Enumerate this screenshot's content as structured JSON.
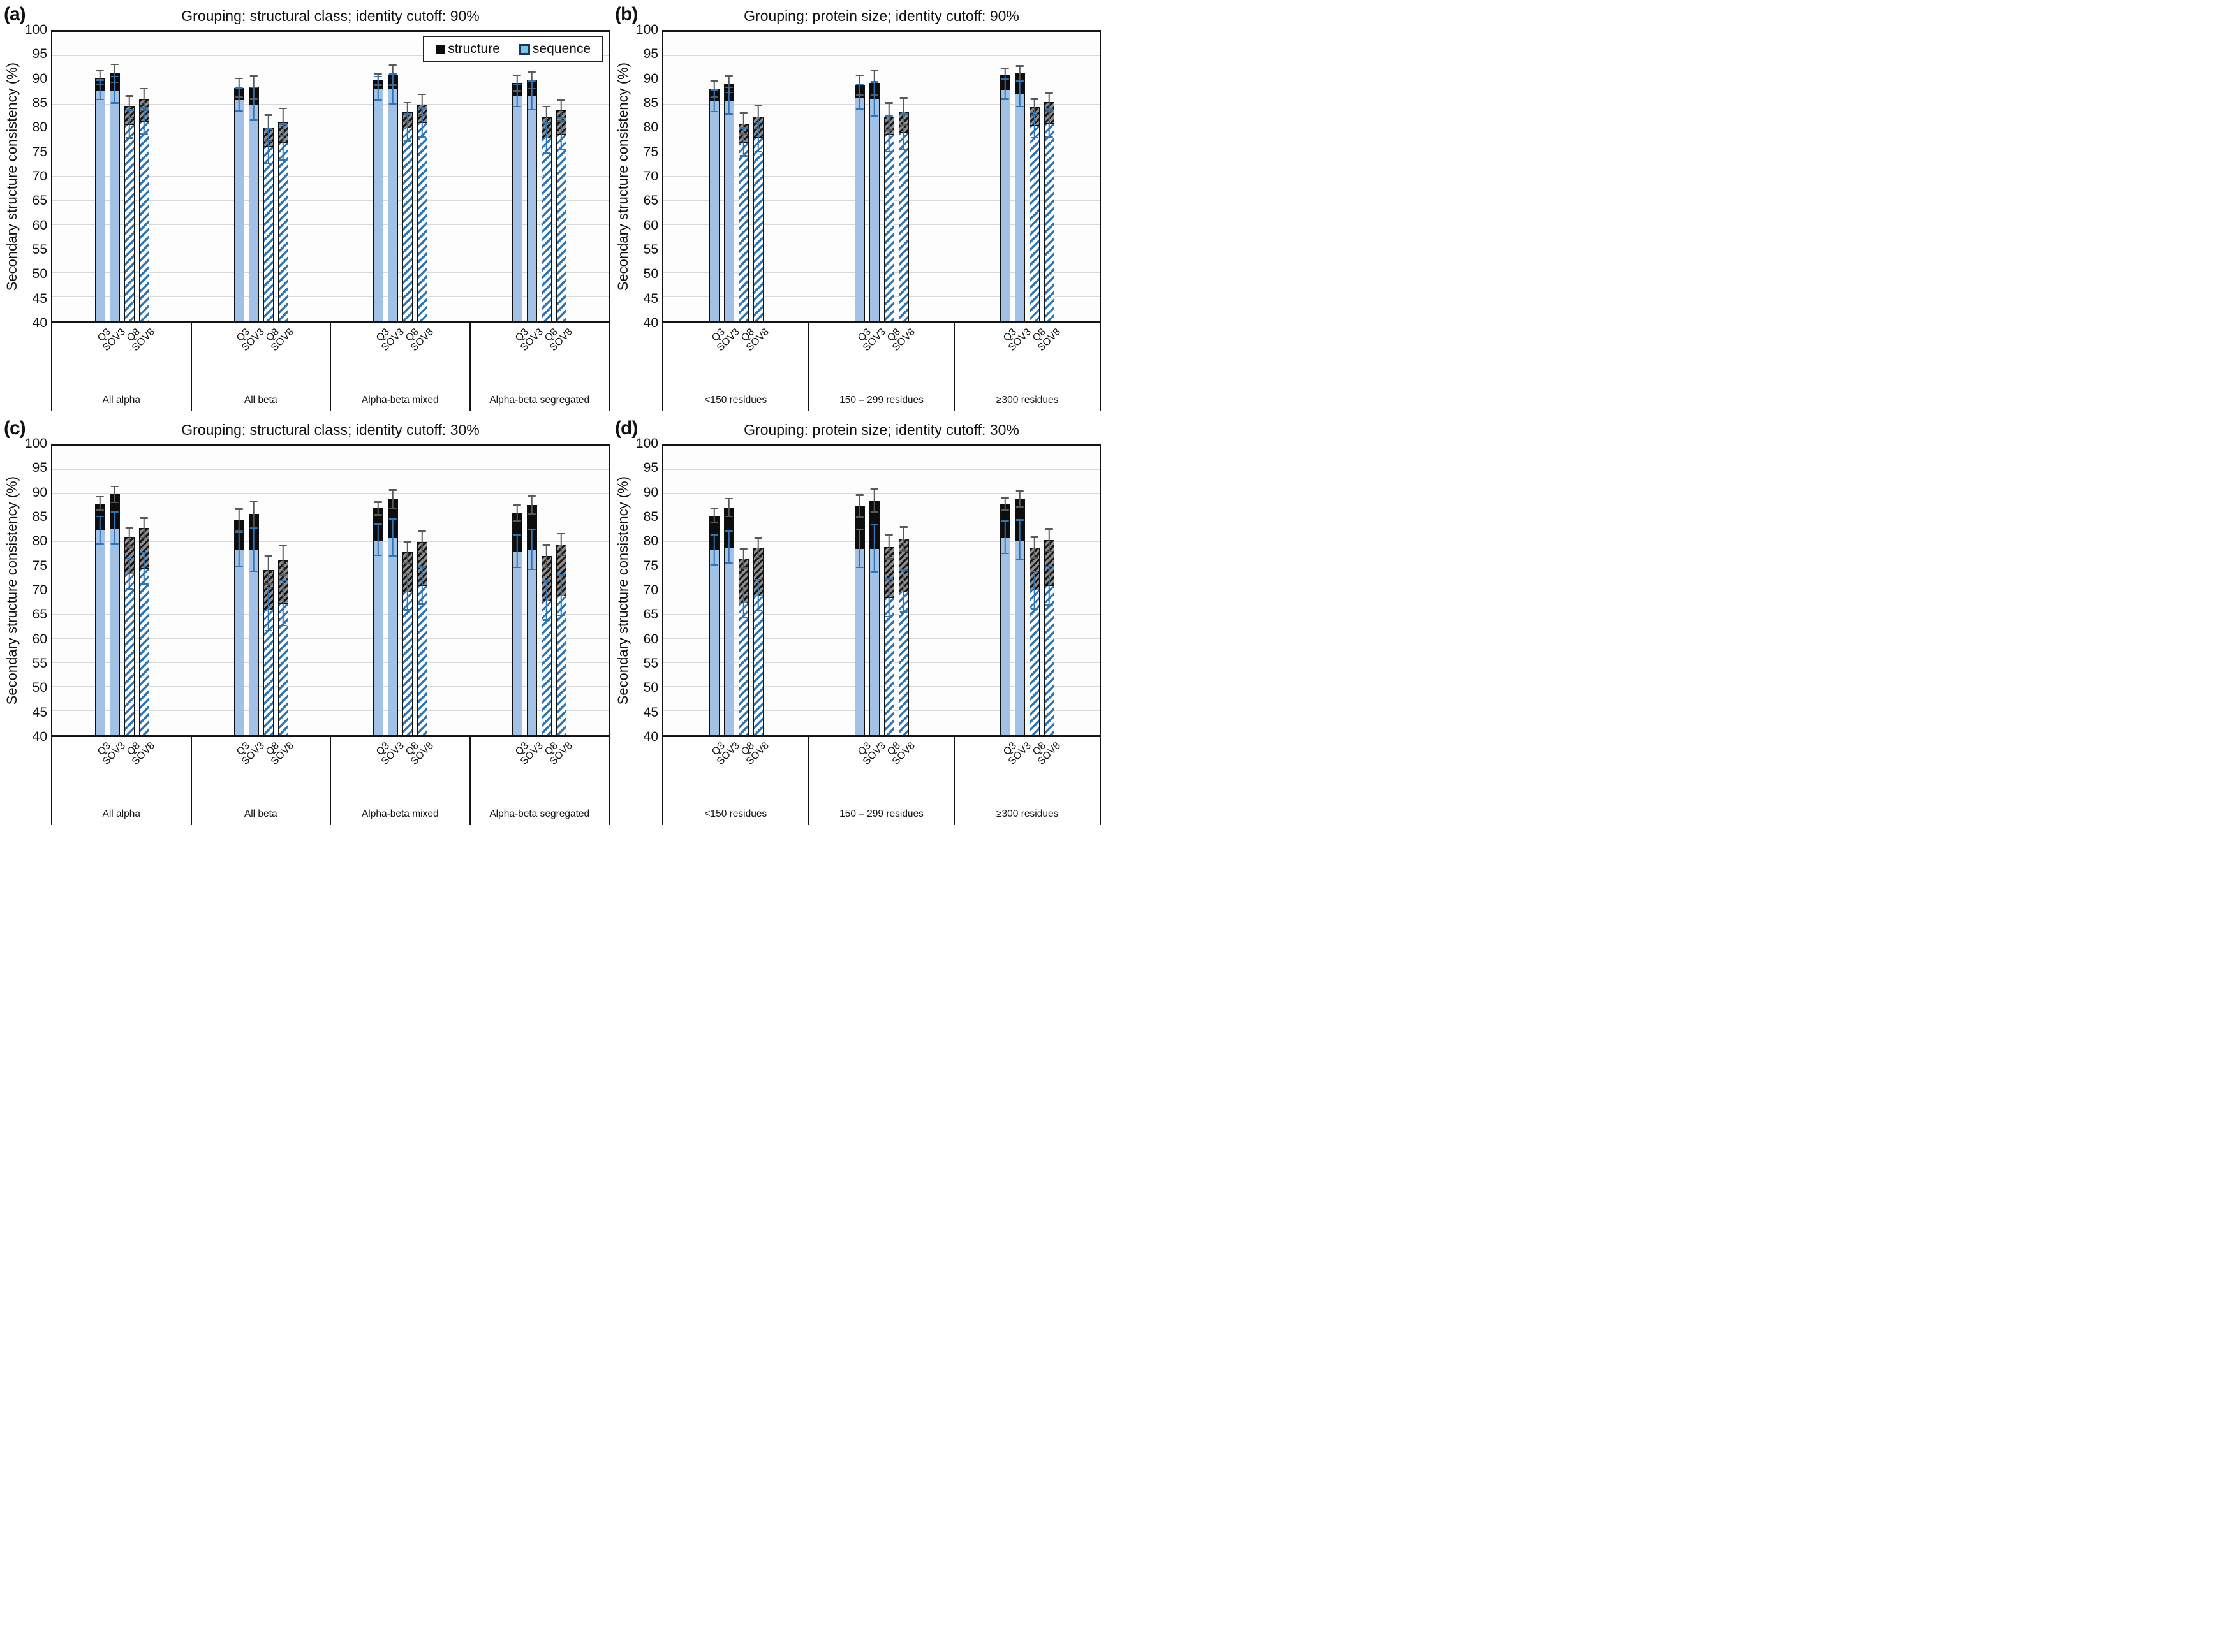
{
  "figure": {
    "ylabel": "Secondary structure consistency (%)",
    "ymin": 40,
    "ymax": 100,
    "ystep": 5,
    "grid": true,
    "legend": {
      "structure_label": "structure",
      "sequence_label": "sequence",
      "position": "top-right-inside-panel-a"
    },
    "colors": {
      "sequence_solid": "#a2c1e4",
      "sequence_hatch_stripe": "#2e75b6",
      "structure_solid": "#0d0d0d",
      "structure_hatch": "#8c8c8c",
      "error_structure": "#595959",
      "error_sequence": "#2e75b6",
      "gridline": "#d9d9d9",
      "frame": "#141414"
    },
    "metrics": [
      "Q3",
      "SOV3",
      "Q8",
      "SOV8"
    ]
  },
  "chart_data": [
    {
      "id": "a",
      "letter": "(a)",
      "type": "bar",
      "title": "Grouping: structural class; identity cutoff: 90%",
      "ylabel": "Secondary structure consistency (%)",
      "ylim": [
        40,
        100
      ],
      "legend": true,
      "groups": [
        {
          "label": "All alpha",
          "bars": [
            {
              "metric": "Q3",
              "structure": 90.5,
              "sequence": 88.0,
              "err_structure": 1.6,
              "err_sequence": 2.2
            },
            {
              "metric": "SOV3",
              "structure": 91.4,
              "sequence": 88.0,
              "err_structure": 2.0,
              "err_sequence": 2.9
            },
            {
              "metric": "Q8",
              "structure": 84.5,
              "sequence": 80.9,
              "err_structure": 2.4,
              "err_sequence": 3.1
            },
            {
              "metric": "SOV8",
              "structure": 86.0,
              "sequence": 81.5,
              "err_structure": 2.4,
              "err_sequence": 2.9
            }
          ]
        },
        {
          "label": "All beta",
          "bars": [
            {
              "metric": "Q3",
              "structure": 88.4,
              "sequence": 86.0,
              "err_structure": 2.1,
              "err_sequence": 2.5
            },
            {
              "metric": "SOV3",
              "structure": 88.5,
              "sequence": 85.1,
              "err_structure": 2.6,
              "err_sequence": 3.6
            },
            {
              "metric": "Q8",
              "structure": 80.1,
              "sequence": 76.3,
              "err_structure": 2.8,
              "err_sequence": 3.7
            },
            {
              "metric": "SOV8",
              "structure": 81.3,
              "sequence": 77.2,
              "err_structure": 3.0,
              "err_sequence": 3.9
            }
          ]
        },
        {
          "label": "Alpha-beta mixed",
          "bars": [
            {
              "metric": "Q3",
              "structure": 90.1,
              "sequence": 88.3,
              "err_structure": 1.3,
              "err_sequence": 2.6
            },
            {
              "metric": "SOV3",
              "structure": 91.0,
              "sequence": 88.2,
              "err_structure": 2.2,
              "err_sequence": 3.3
            },
            {
              "metric": "Q8",
              "structure": 83.4,
              "sequence": 80.2,
              "err_structure": 2.1,
              "err_sequence": 3.0
            },
            {
              "metric": "SOV8",
              "structure": 84.9,
              "sequence": 81.2,
              "err_structure": 2.3,
              "err_sequence": 3.2
            }
          ]
        },
        {
          "label": "Alpha-beta segregated",
          "bars": [
            {
              "metric": "Q3",
              "structure": 89.4,
              "sequence": 86.8,
              "err_structure": 1.8,
              "err_sequence": 2.4
            },
            {
              "metric": "SOV3",
              "structure": 90.0,
              "sequence": 86.8,
              "err_structure": 1.9,
              "err_sequence": 3.1
            },
            {
              "metric": "Q8",
              "structure": 82.3,
              "sequence": 78.0,
              "err_structure": 2.4,
              "err_sequence": 3.3
            },
            {
              "metric": "SOV8",
              "structure": 83.7,
              "sequence": 78.9,
              "err_structure": 2.3,
              "err_sequence": 3.4
            }
          ]
        }
      ]
    },
    {
      "id": "b",
      "letter": "(b)",
      "type": "bar",
      "title": "Grouping: protein size; identity cutoff: 90%",
      "ylabel": "Secondary structure consistency (%)",
      "ylim": [
        40,
        100
      ],
      "legend": false,
      "groups": [
        {
          "label": "<150 residues",
          "bars": [
            {
              "metric": "Q3",
              "structure": 88.2,
              "sequence": 85.7,
              "err_structure": 1.8,
              "err_sequence": 2.4
            },
            {
              "metric": "SOV3",
              "structure": 89.2,
              "sequence": 85.7,
              "err_structure": 1.9,
              "err_sequence": 3.0
            },
            {
              "metric": "Q8",
              "structure": 81.0,
              "sequence": 77.2,
              "err_structure": 2.3,
              "err_sequence": 3.1
            },
            {
              "metric": "SOV8",
              "structure": 82.4,
              "sequence": 78.2,
              "err_structure": 2.5,
              "err_sequence": 3.2
            }
          ]
        },
        {
          "label": "150 – 299 residues",
          "bars": [
            {
              "metric": "Q3",
              "structure": 89.0,
              "sequence": 86.5,
              "err_structure": 2.2,
              "err_sequence": 2.7
            },
            {
              "metric": "SOV3",
              "structure": 89.4,
              "sequence": 86.1,
              "err_structure": 2.7,
              "err_sequence": 3.7
            },
            {
              "metric": "Q8",
              "structure": 82.4,
              "sequence": 78.9,
              "err_structure": 3.0,
              "err_sequence": 3.9
            },
            {
              "metric": "SOV8",
              "structure": 83.5,
              "sequence": 79.3,
              "err_structure": 3.0,
              "err_sequence": 3.9
            }
          ]
        },
        {
          "label": "≥300 residues",
          "bars": [
            {
              "metric": "Q3",
              "structure": 91.2,
              "sequence": 88.1,
              "err_structure": 1.3,
              "err_sequence": 2.2
            },
            {
              "metric": "SOV3",
              "structure": 91.4,
              "sequence": 87.2,
              "err_structure": 1.7,
              "err_sequence": 2.8
            },
            {
              "metric": "Q8",
              "structure": 84.4,
              "sequence": 80.7,
              "err_structure": 1.8,
              "err_sequence": 2.8
            },
            {
              "metric": "SOV8",
              "structure": 85.4,
              "sequence": 81.1,
              "err_structure": 2.0,
              "err_sequence": 3.0
            }
          ]
        }
      ]
    },
    {
      "id": "c",
      "letter": "(c)",
      "type": "bar",
      "title": "Grouping: structural class; identity cutoff: 30%",
      "ylabel": "Secondary structure consistency (%)",
      "ylim": [
        40,
        100
      ],
      "legend": false,
      "groups": [
        {
          "label": "All alpha",
          "bars": [
            {
              "metric": "Q3",
              "structure": 88.0,
              "sequence": 82.5,
              "err_structure": 1.6,
              "err_sequence": 3.0
            },
            {
              "metric": "SOV3",
              "structure": 89.9,
              "sequence": 83.0,
              "err_structure": 1.8,
              "err_sequence": 3.5
            },
            {
              "metric": "Q8",
              "structure": 81.0,
              "sequence": 73.5,
              "err_structure": 2.1,
              "err_sequence": 3.3
            },
            {
              "metric": "SOV8",
              "structure": 83.0,
              "sequence": 74.6,
              "err_structure": 2.2,
              "err_sequence": 3.5
            }
          ]
        },
        {
          "label": "All beta",
          "bars": [
            {
              "metric": "Q3",
              "structure": 84.6,
              "sequence": 78.5,
              "err_structure": 2.4,
              "err_sequence": 3.7
            },
            {
              "metric": "SOV3",
              "structure": 85.8,
              "sequence": 78.4,
              "err_structure": 2.9,
              "err_sequence": 4.6
            },
            {
              "metric": "Q8",
              "structure": 74.2,
              "sequence": 66.1,
              "err_structure": 3.1,
              "err_sequence": 4.6
            },
            {
              "metric": "SOV8",
              "structure": 76.2,
              "sequence": 67.4,
              "err_structure": 3.2,
              "err_sequence": 4.8
            }
          ]
        },
        {
          "label": "Alpha-beta mixed",
          "bars": [
            {
              "metric": "Q3",
              "structure": 87.0,
              "sequence": 80.5,
              "err_structure": 1.5,
              "err_sequence": 3.4
            },
            {
              "metric": "SOV3",
              "structure": 88.9,
              "sequence": 81.0,
              "err_structure": 2.1,
              "err_sequence": 4.0
            },
            {
              "metric": "Q8",
              "structure": 77.9,
              "sequence": 69.7,
              "err_structure": 2.3,
              "err_sequence": 3.9
            },
            {
              "metric": "SOV8",
              "structure": 80.1,
              "sequence": 71.0,
              "err_structure": 2.4,
              "err_sequence": 4.0
            }
          ]
        },
        {
          "label": "Alpha-beta segregated",
          "bars": [
            {
              "metric": "Q3",
              "structure": 86.0,
              "sequence": 78.1,
              "err_structure": 1.8,
              "err_sequence": 3.5
            },
            {
              "metric": "SOV3",
              "structure": 87.7,
              "sequence": 78.5,
              "err_structure": 2.0,
              "err_sequence": 4.3
            },
            {
              "metric": "Q8",
              "structure": 77.1,
              "sequence": 67.9,
              "err_structure": 2.5,
              "err_sequence": 4.2
            },
            {
              "metric": "SOV8",
              "structure": 79.5,
              "sequence": 69.0,
              "err_structure": 2.4,
              "err_sequence": 4.3
            }
          ]
        }
      ]
    },
    {
      "id": "d",
      "letter": "(d)",
      "type": "bar",
      "title": "Grouping: protein size; identity cutoff: 30%",
      "ylabel": "Secondary structure consistency (%)",
      "ylim": [
        40,
        100
      ],
      "legend": false,
      "groups": [
        {
          "label": "<150 residues",
          "bars": [
            {
              "metric": "Q3",
              "structure": 85.5,
              "sequence": 78.4,
              "err_structure": 1.6,
              "err_sequence": 3.2
            },
            {
              "metric": "SOV3",
              "structure": 87.2,
              "sequence": 79.0,
              "err_structure": 2.0,
              "err_sequence": 3.5
            },
            {
              "metric": "Q8",
              "structure": 76.6,
              "sequence": 67.5,
              "err_structure": 2.2,
              "err_sequence": 3.3
            },
            {
              "metric": "SOV8",
              "structure": 78.9,
              "sequence": 69.0,
              "err_structure": 2.2,
              "err_sequence": 3.4
            }
          ]
        },
        {
          "label": "150 – 299 residues",
          "bars": [
            {
              "metric": "Q3",
              "structure": 87.5,
              "sequence": 78.7,
              "err_structure": 2.4,
              "err_sequence": 4.1
            },
            {
              "metric": "SOV3",
              "structure": 88.6,
              "sequence": 78.7,
              "err_structure": 2.5,
              "err_sequence": 5.1
            },
            {
              "metric": "Q8",
              "structure": 79.0,
              "sequence": 68.5,
              "err_structure": 2.6,
              "err_sequence": 4.1
            },
            {
              "metric": "SOV8",
              "structure": 80.7,
              "sequence": 69.8,
              "err_structure": 2.6,
              "err_sequence": 4.5
            }
          ]
        },
        {
          "label": "≥300 residues",
          "bars": [
            {
              "metric": "Q3",
              "structure": 87.9,
              "sequence": 81.0,
              "err_structure": 1.5,
              "err_sequence": 3.5
            },
            {
              "metric": "SOV3",
              "structure": 89.0,
              "sequence": 80.5,
              "err_structure": 1.8,
              "err_sequence": 4.3
            },
            {
              "metric": "Q8",
              "structure": 78.9,
              "sequence": 70.1,
              "err_structure": 2.3,
              "err_sequence": 4.0
            },
            {
              "metric": "SOV8",
              "structure": 80.4,
              "sequence": 71.0,
              "err_structure": 2.5,
              "err_sequence": 4.2
            }
          ]
        }
      ]
    }
  ]
}
